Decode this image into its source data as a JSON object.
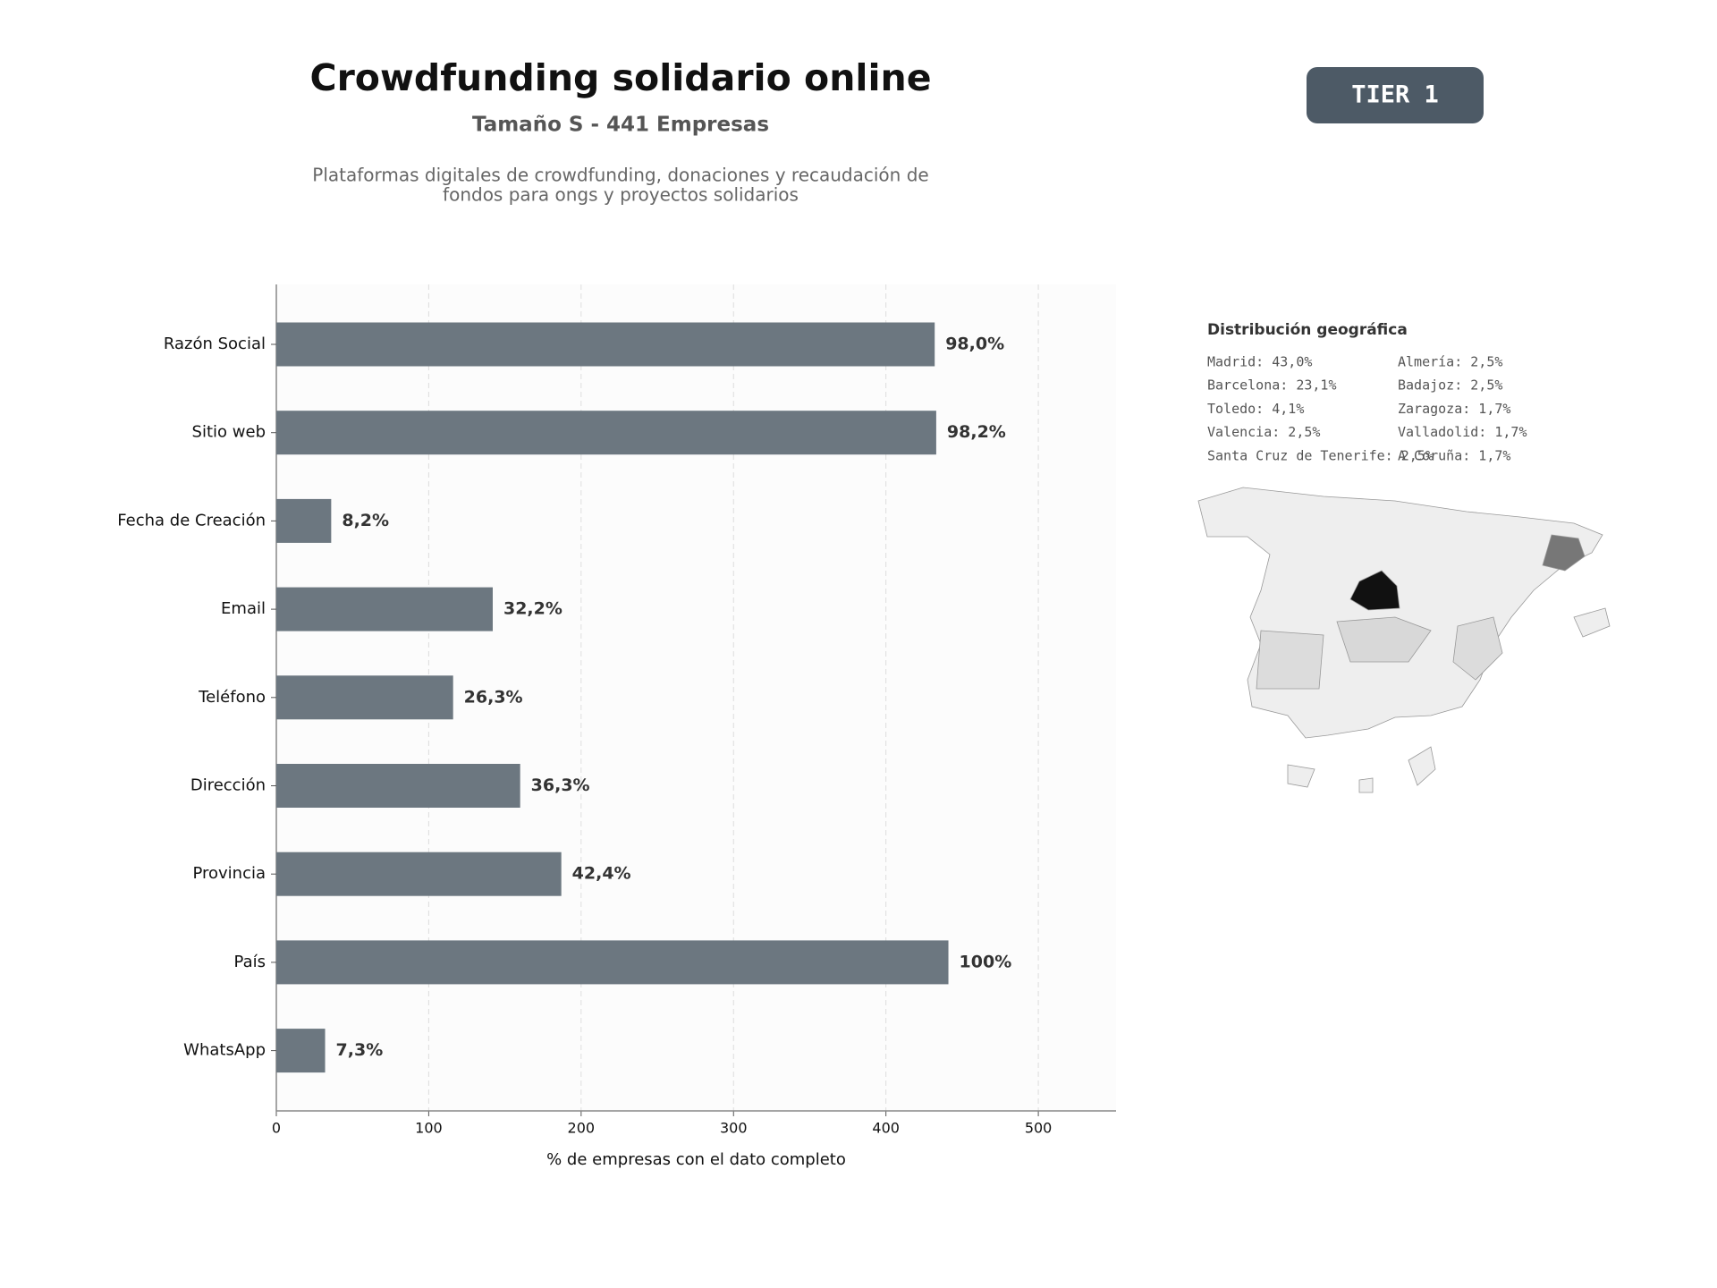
{
  "header": {
    "title": "Crowdfunding solidario online",
    "subtitle": "Tamaño S - 441 Empresas",
    "description": [
      "Plataformas digitales de crowdfunding, donaciones y recaudación de",
      "fondos para ongs y proyectos solidarios"
    ],
    "badge": "TIER 1"
  },
  "chart_data": {
    "type": "hbar",
    "categories": [
      "Razón Social",
      "Sitio web",
      "Fecha de Creación",
      "Email",
      "Teléfono",
      "Dirección",
      "Provincia",
      "País",
      "WhatsApp"
    ],
    "values": [
      432,
      433,
      36,
      142,
      116,
      160,
      187,
      441,
      32
    ],
    "value_labels": [
      "98,0%",
      "98,2%",
      "8,2%",
      "32,2%",
      "26,3%",
      "36,3%",
      "42,4%",
      "100%",
      "7,3%"
    ],
    "color": "#6c7780",
    "xlim": [
      0,
      551
    ],
    "xticks": [
      0,
      100,
      200,
      300,
      400,
      500
    ],
    "xlabel": "% de empresas con el dato completo",
    "grid": true
  },
  "geo": {
    "title": "Distribución geográfica",
    "items": [
      "Madrid: 43,0%",
      "Barcelona: 23,1%",
      "Toledo: 4,1%",
      "Valencia: 2,5%",
      "Santa Cruz de Tenerife: 2,5%",
      "Almería: 2,5%",
      "Badajoz: 2,5%",
      "Zaragoza: 1,7%",
      "Valladolid: 1,7%",
      "A Coruña: 1,7%"
    ]
  }
}
